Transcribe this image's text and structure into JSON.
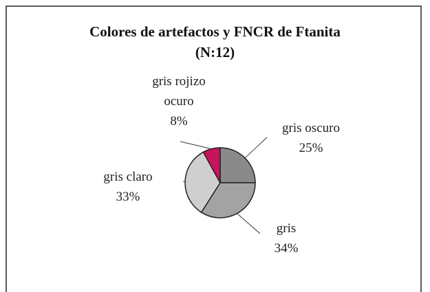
{
  "chart_data": {
    "type": "pie",
    "title": "Colores de artefactos y FNCR de Ftanita",
    "subtitle": "(N:12)",
    "categories": [
      "gris oscuro",
      "gris",
      "gris claro",
      "gris rojizo ocuro"
    ],
    "values": [
      25,
      34,
      33,
      8
    ],
    "value_labels": [
      "25%",
      "34%",
      "33%",
      "8%"
    ],
    "colors": [
      "#8a8a8a",
      "#a3a3a3",
      "#cfcfcf",
      "#c8145c"
    ]
  }
}
